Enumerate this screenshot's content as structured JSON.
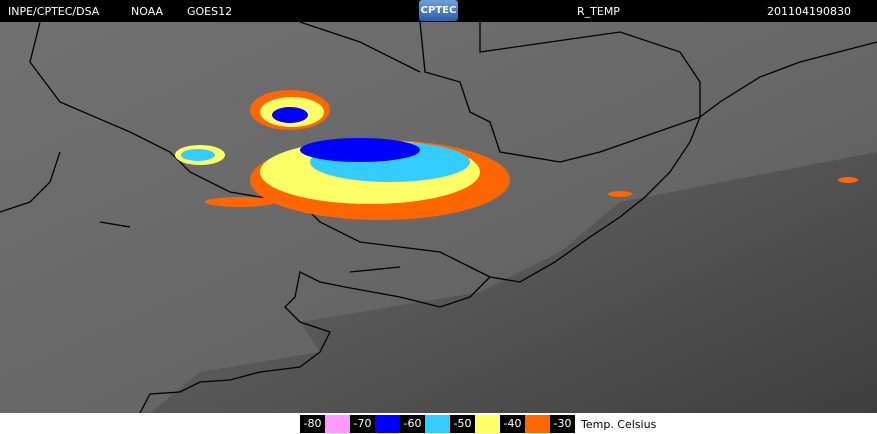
{
  "header": {
    "source": "INPE/CPTEC/DSA",
    "agency": "NOAA",
    "satellite": "GOES12",
    "logo": "CPTEC",
    "product": "R_TEMP",
    "timestamp": "201104190830"
  },
  "legend": {
    "values": [
      -80,
      -70,
      -60,
      -50,
      -40,
      -30
    ],
    "colors": [
      "#ff99ff",
      "#0000ff",
      "#33ccff",
      "#ffff66",
      "#ff6600"
    ],
    "unit_label": "Temp. Celsius"
  }
}
